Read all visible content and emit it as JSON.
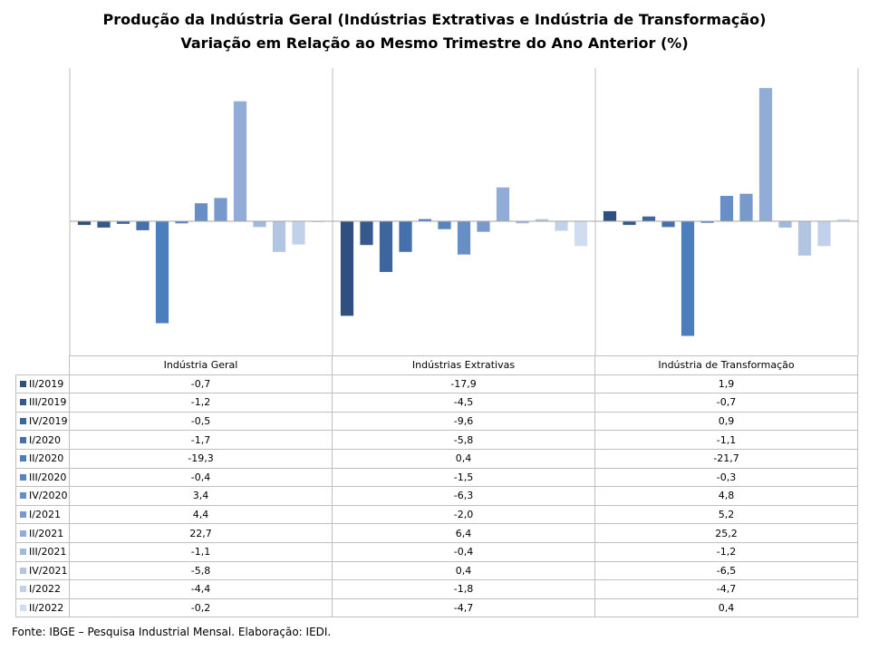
{
  "title_line1": "Produção da Indústria Geral (Indústrias Extrativas e Indústria de Transformação)",
  "title_line2": "Variação em Relação ao Mesmo Trimestre do Ano Anterior (%)",
  "source": "Fonte: IBGE – Pesquisa Industrial Mensal. Elaboração: IEDI.",
  "chart_data": {
    "type": "bar",
    "title": "Produção da Indústria Geral (Indústrias Extrativas e Indústria de Transformação) Variação em Relação ao Mesmo Trimestre do Ano Anterior (%)",
    "categories": [
      "Indústria Geral",
      "Indústrias Extrativas",
      "Indústria de Transformação"
    ],
    "ylim": [
      -22,
      29
    ],
    "grid": false,
    "legend_placement": "data-table",
    "series": [
      {
        "name": "II/2019",
        "color": "#2f4f7f",
        "values": [
          -0.7,
          -17.9,
          1.9
        ],
        "labels": [
          "-0,7",
          "-17,9",
          "1,9"
        ]
      },
      {
        "name": "III/2019",
        "color": "#36598d",
        "values": [
          -1.2,
          -4.5,
          -0.7
        ],
        "labels": [
          "-1,2",
          "-4,5",
          "-0,7"
        ]
      },
      {
        "name": "IV/2019",
        "color": "#3d659e",
        "values": [
          -0.5,
          -9.6,
          0.9
        ],
        "labels": [
          "-0,5",
          "-9,6",
          "0,9"
        ]
      },
      {
        "name": "I/2020",
        "color": "#4471ae",
        "values": [
          -1.7,
          -5.8,
          -1.1
        ],
        "labels": [
          "-1,7",
          "-5,8",
          "-1,1"
        ]
      },
      {
        "name": "II/2020",
        "color": "#4c7dbd",
        "values": [
          -19.3,
          0.4,
          -21.7
        ],
        "labels": [
          "-19,3",
          "0,4",
          "-21,7"
        ]
      },
      {
        "name": "III/2020",
        "color": "#5884c0",
        "values": [
          -0.4,
          -1.5,
          -0.3
        ],
        "labels": [
          "-0,4",
          "-1,5",
          "-0,3"
        ]
      },
      {
        "name": "IV/2020",
        "color": "#678fc6",
        "values": [
          3.4,
          -6.3,
          4.8
        ],
        "labels": [
          "3,4",
          "-6,3",
          "4,8"
        ]
      },
      {
        "name": "I/2021",
        "color": "#7899cb",
        "values": [
          4.4,
          -2.0,
          5.2
        ],
        "labels": [
          "4,4",
          "-2,0",
          "5,2"
        ]
      },
      {
        "name": "II/2021",
        "color": "#91acd6",
        "values": [
          22.7,
          6.4,
          25.2
        ],
        "labels": [
          "22,7",
          "6,4",
          "25,2"
        ]
      },
      {
        "name": "III/2021",
        "color": "#a2b9dd",
        "values": [
          -1.1,
          -0.4,
          -1.2
        ],
        "labels": [
          "-1,1",
          "-0,4",
          "-1,2"
        ]
      },
      {
        "name": "IV/2021",
        "color": "#b2c5e3",
        "values": [
          -5.8,
          0.4,
          -6.5
        ],
        "labels": [
          "-5,8",
          "0,4",
          "-6,5"
        ]
      },
      {
        "name": "I/2022",
        "color": "#c2d1ea",
        "values": [
          -4.4,
          -1.8,
          -4.7
        ],
        "labels": [
          "-4,4",
          "-1,8",
          "-4,7"
        ]
      },
      {
        "name": "II/2022",
        "color": "#d0dcef",
        "values": [
          -0.2,
          -4.7,
          0.4
        ],
        "labels": [
          "-0,2",
          "-4,7",
          "0,4"
        ]
      }
    ]
  }
}
